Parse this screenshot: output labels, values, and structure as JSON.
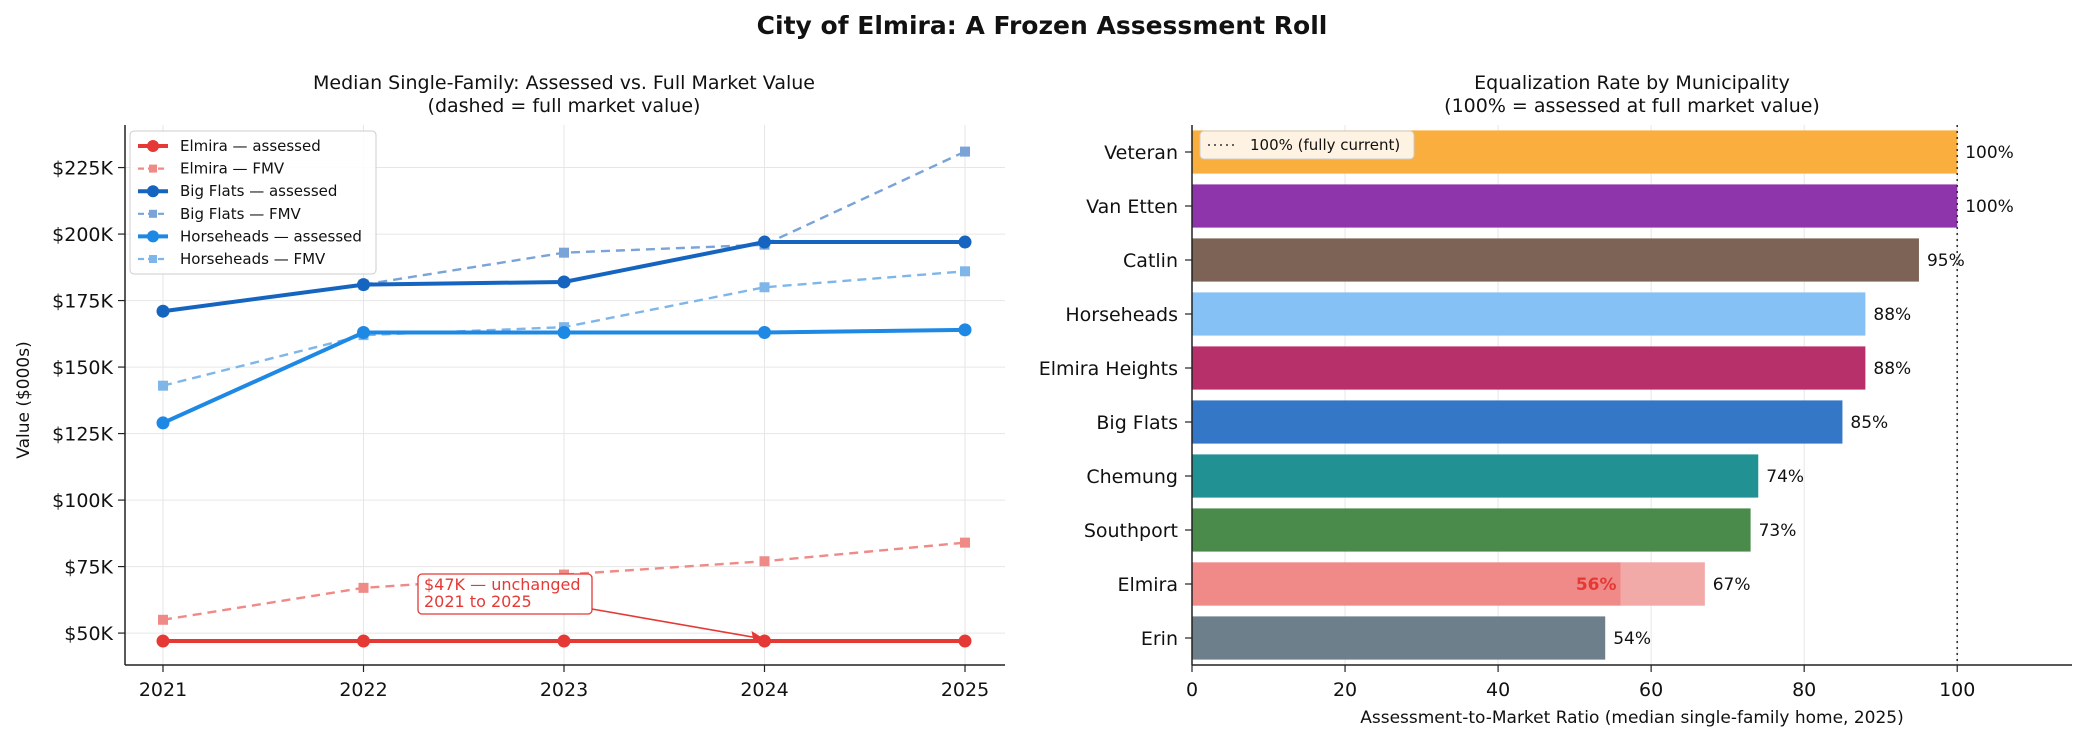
{
  "figure": {
    "title": "City of Elmira: A Frozen Assessment Roll"
  },
  "chart_data": [
    {
      "type": "line",
      "title": "Median Single-Family: Assessed vs. Full Market Value",
      "subtitle": "(dashed = full market value)",
      "xlabel": "",
      "ylabel": "Value ($000s)",
      "x": [
        "2021",
        "2022",
        "2023",
        "2024",
        "2025"
      ],
      "ylim": [
        38,
        241
      ],
      "yticks": [
        50,
        75,
        100,
        125,
        150,
        175,
        200,
        225
      ],
      "ytick_labels": [
        "$50K",
        "$75K",
        "$100K",
        "$125K",
        "$150K",
        "$175K",
        "$200K",
        "$225K"
      ],
      "grid": true,
      "legend_position": "top-left",
      "series": [
        {
          "name": "Elmira — assessed",
          "values": [
            47,
            47,
            47,
            47,
            47
          ],
          "color": "#e53935",
          "style": "solid",
          "marker": "circle"
        },
        {
          "name": "Elmira — FMV",
          "values": [
            55,
            67,
            72,
            77,
            84
          ],
          "color": "#ef8a87",
          "style": "dashed",
          "marker": "square"
        },
        {
          "name": "Big Flats — assessed",
          "values": [
            171,
            181,
            182,
            197,
            197
          ],
          "color": "#1565c0",
          "style": "solid",
          "marker": "circle"
        },
        {
          "name": "Big Flats — FMV",
          "values": [
            null,
            181,
            193,
            196,
            231
          ],
          "color": "#7aa3d8",
          "style": "dashed",
          "marker": "square"
        },
        {
          "name": "Horseheads — assessed",
          "values": [
            129,
            163,
            163,
            163,
            164
          ],
          "color": "#1e88e5",
          "style": "solid",
          "marker": "circle"
        },
        {
          "name": "Horseheads — FMV",
          "values": [
            143,
            162,
            165,
            180,
            186
          ],
          "color": "#7fb6ea",
          "style": "dashed",
          "marker": "square"
        }
      ],
      "annotation": {
        "lines": [
          "$47K — unchanged",
          "2021 to 2025"
        ],
        "color": "#e53935"
      }
    },
    {
      "type": "bar",
      "orientation": "horizontal",
      "title": "Equalization Rate by Municipality",
      "subtitle": "(100% = assessed at full market value)",
      "xlabel": "Assessment-to-Market Ratio (median single-family home, 2025)",
      "ylabel": "",
      "xlim": [
        0,
        115
      ],
      "xticks": [
        0,
        20,
        40,
        60,
        80,
        100
      ],
      "grid": true,
      "categories": [
        "Veteran",
        "Van Etten",
        "Catlin",
        "Horseheads",
        "Elmira Heights",
        "Big Flats",
        "Chemung",
        "Southport",
        "Elmira",
        "Erin"
      ],
      "values": [
        100,
        100,
        95,
        88,
        88,
        85,
        74,
        73,
        67,
        54
      ],
      "value_labels": [
        "100%",
        "100%",
        "95%",
        "88%",
        "88%",
        "85%",
        "74%",
        "73%",
        "67%",
        "54%"
      ],
      "colors": [
        "#f9ae3d",
        "#8e35ac",
        "#7d6355",
        "#85c1f5",
        "#b7306a",
        "#3477c6",
        "#219193",
        "#4a8b4b",
        "#ef8f8d",
        "#6c7f8a"
      ],
      "elmira_inner": {
        "category": "Elmira",
        "value": 56,
        "label": "56%",
        "label_color": "#e53935",
        "color": "#ef8a87"
      },
      "reference_line": {
        "value": 100,
        "label": "100% (fully current)"
      }
    }
  ]
}
